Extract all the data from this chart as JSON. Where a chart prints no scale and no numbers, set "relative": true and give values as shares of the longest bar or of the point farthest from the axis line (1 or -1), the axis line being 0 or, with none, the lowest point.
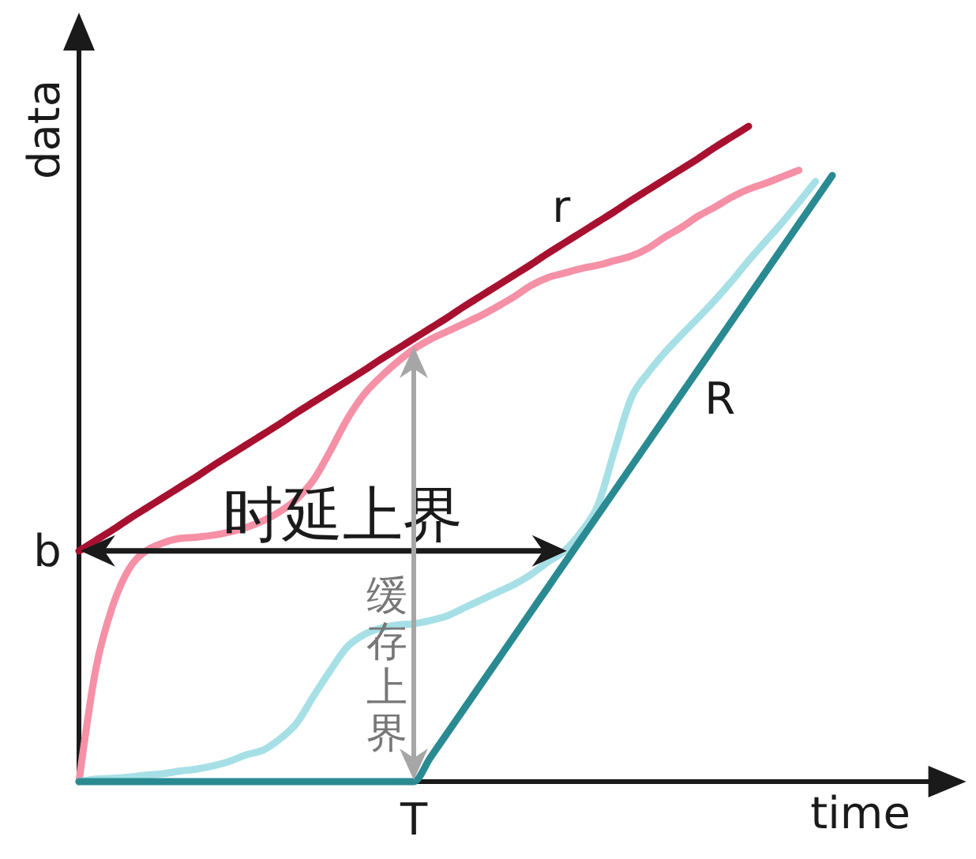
{
  "chart_data": {
    "type": "line",
    "relative": true,
    "xlabel": "time",
    "ylabel": "data",
    "categories": [
      null,
      null,
      null,
      null,
      null,
      null,
      null,
      null,
      null,
      null,
      null,
      null,
      null,
      null,
      null,
      null,
      null,
      null,
      null,
      null,
      null,
      null,
      null,
      null,
      null,
      null,
      null,
      null,
      null,
      null,
      null,
      null,
      null,
      null,
      null,
      null,
      null,
      null,
      null,
      null,
      null,
      null,
      null,
      null,
      null,
      null,
      null,
      null,
      null,
      null,
      null,
      null,
      null,
      null
    ],
    "series": [
      {
        "color": "#f590a6",
        "values": [
          0,
          0.171,
          0.267,
          0.325,
          0.352,
          0.364,
          0.371,
          0.373,
          0.376,
          0.381,
          0.388,
          0.398,
          0.412,
          0.431,
          0.46,
          0.504,
          0.552,
          0.59,
          0.617,
          0.64,
          0.66,
          0.675,
          0.687,
          0.699,
          0.711,
          0.725,
          0.74,
          0.757,
          0.769,
          0.776,
          0.783,
          0.788,
          0.795,
          0.802,
          0.814,
          0.831,
          0.846,
          0.863,
          0.877,
          0.892,
          0.904,
          0.913,
          0.923,
          0.933,
          null,
          null,
          null,
          null,
          null,
          null,
          null,
          null,
          null,
          null
        ]
      },
      {
        "color": "#a6e0e6",
        "values": [
          0,
          0.004,
          0.005,
          0.007,
          0.01,
          0.012,
          0.016,
          0.019,
          0.024,
          0.031,
          0.041,
          0.048,
          0.065,
          0.089,
          0.13,
          0.169,
          0.205,
          0.224,
          0.234,
          0.239,
          0.241,
          0.246,
          0.253,
          0.265,
          0.277,
          0.289,
          0.301,
          0.316,
          0.335,
          0.352,
          0.381,
          0.422,
          0.506,
          0.586,
          0.624,
          0.655,
          0.682,
          0.708,
          0.735,
          0.764,
          0.795,
          0.824,
          0.853,
          0.884,
          0.916,
          null,
          null,
          null,
          null,
          null,
          null,
          null,
          null,
          null
        ]
      },
      {
        "name": "R",
        "color": "#2a8a92",
        "values": [
          0,
          0,
          0,
          0,
          0,
          0,
          0,
          0,
          0,
          0,
          0,
          0,
          0,
          0,
          0,
          0,
          0,
          0,
          0,
          0,
          0,
          0.037,
          0.074,
          0.111,
          0.148,
          0.185,
          0.222,
          0.259,
          0.296,
          0.333,
          0.37,
          0.407,
          0.444,
          0.481,
          0.518,
          0.555,
          0.592,
          0.629,
          0.666,
          0.703,
          0.74,
          0.777,
          0.814,
          0.851,
          0.888,
          0.925,
          null,
          null,
          null,
          null,
          null,
          null,
          null,
          null
        ]
      },
      {
        "name": "r",
        "color": "#a8102f",
        "values": [
          0.352,
          0.368,
          0.384,
          0.401,
          0.417,
          0.433,
          0.449,
          0.465,
          0.482,
          0.498,
          0.514,
          0.53,
          0.546,
          0.563,
          0.579,
          0.595,
          0.611,
          0.627,
          0.644,
          0.66,
          0.676,
          0.692,
          0.708,
          0.725,
          0.741,
          0.757,
          0.773,
          0.789,
          0.806,
          0.822,
          0.838,
          0.854,
          0.87,
          0.887,
          0.903,
          0.919,
          0.935,
          0.951,
          0.968,
          0.984,
          1,
          null,
          null,
          null,
          null,
          null,
          null,
          null,
          null,
          null,
          null,
          null,
          null,
          null
        ]
      }
    ],
    "annotations": [
      "b",
      "时延上界",
      {
        "text": "T",
        "y": 0
      },
      "缓存上界"
    ]
  }
}
